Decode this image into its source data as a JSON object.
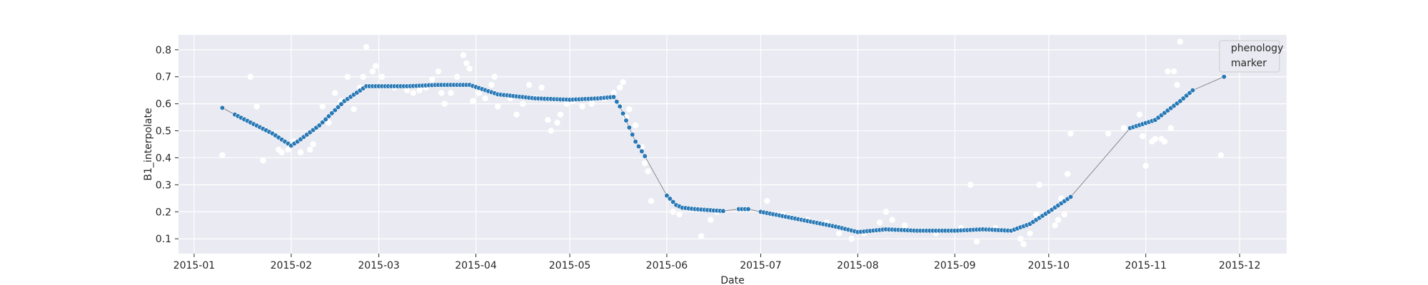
{
  "chart_data": {
    "type": "scatter",
    "title": "",
    "xlabel": "Date",
    "ylabel": "B1_interpolate",
    "x_axis": {
      "type": "date",
      "range": [
        "2014-12-27",
        "2015-12-16"
      ],
      "ticks": [
        "2015-01-01",
        "2015-02-01",
        "2015-03-01",
        "2015-04-01",
        "2015-05-01",
        "2015-06-01",
        "2015-07-01",
        "2015-08-01",
        "2015-09-01",
        "2015-10-01",
        "2015-11-01",
        "2015-12-01"
      ],
      "tick_labels": [
        "2015-01",
        "2015-02",
        "2015-03",
        "2015-04",
        "2015-05",
        "2015-06",
        "2015-07",
        "2015-08",
        "2015-09",
        "2015-10",
        "2015-11",
        "2015-12"
      ]
    },
    "y_axis": {
      "range": [
        0.045,
        0.855
      ],
      "ticks": [
        0.1,
        0.2,
        0.3,
        0.4,
        0.5,
        0.6,
        0.7,
        0.8
      ],
      "tick_labels": [
        "0.1",
        "0.2",
        "0.3",
        "0.4",
        "0.5",
        "0.6",
        "0.7",
        "0.8"
      ]
    },
    "grid": true,
    "background": "#eaeaf2",
    "legend": {
      "placement": "top-right",
      "entries": [
        "phenology",
        "marker"
      ]
    },
    "series": [
      {
        "role": "raw-observations",
        "color": "#ffffff",
        "points": [
          [
            "2015-01-10",
            0.41
          ],
          [
            "2015-01-19",
            0.7
          ],
          [
            "2015-01-21",
            0.59
          ],
          [
            "2015-01-23",
            0.39
          ],
          [
            "2015-01-26",
            0.49
          ],
          [
            "2015-01-28",
            0.43
          ],
          [
            "2015-01-29",
            0.42
          ],
          [
            "2015-01-31",
            0.43
          ],
          [
            "2015-02-02",
            0.46
          ],
          [
            "2015-02-04",
            0.42
          ],
          [
            "2015-02-07",
            0.43
          ],
          [
            "2015-02-08",
            0.45
          ],
          [
            "2015-02-11",
            0.59
          ],
          [
            "2015-02-13",
            0.53
          ],
          [
            "2015-02-15",
            0.64
          ],
          [
            "2015-02-17",
            0.61
          ],
          [
            "2015-02-19",
            0.7
          ],
          [
            "2015-02-21",
            0.58
          ],
          [
            "2015-02-23",
            0.66
          ],
          [
            "2015-02-24",
            0.7
          ],
          [
            "2015-02-25",
            0.81
          ],
          [
            "2015-02-27",
            0.72
          ],
          [
            "2015-02-28",
            0.74
          ],
          [
            "2015-03-02",
            0.7
          ],
          [
            "2015-03-06",
            0.66
          ],
          [
            "2015-03-10",
            0.65
          ],
          [
            "2015-03-12",
            0.64
          ],
          [
            "2015-03-14",
            0.65
          ],
          [
            "2015-03-16",
            0.66
          ],
          [
            "2015-03-18",
            0.69
          ],
          [
            "2015-03-20",
            0.72
          ],
          [
            "2015-03-21",
            0.64
          ],
          [
            "2015-03-22",
            0.6
          ],
          [
            "2015-03-24",
            0.64
          ],
          [
            "2015-03-26",
            0.7
          ],
          [
            "2015-03-28",
            0.78
          ],
          [
            "2015-03-29",
            0.75
          ],
          [
            "2015-03-30",
            0.73
          ],
          [
            "2015-03-31",
            0.61
          ],
          [
            "2015-04-02",
            0.64
          ],
          [
            "2015-04-04",
            0.62
          ],
          [
            "2015-04-06",
            0.67
          ],
          [
            "2015-04-07",
            0.7
          ],
          [
            "2015-04-08",
            0.59
          ],
          [
            "2015-04-12",
            0.62
          ],
          [
            "2015-04-14",
            0.56
          ],
          [
            "2015-04-16",
            0.6
          ],
          [
            "2015-04-18",
            0.67
          ],
          [
            "2015-04-20",
            0.62
          ],
          [
            "2015-04-22",
            0.66
          ],
          [
            "2015-04-24",
            0.54
          ],
          [
            "2015-04-25",
            0.5
          ],
          [
            "2015-04-27",
            0.53
          ],
          [
            "2015-04-28",
            0.56
          ],
          [
            "2015-04-30",
            0.6
          ],
          [
            "2015-05-02",
            0.61
          ],
          [
            "2015-05-05",
            0.59
          ],
          [
            "2015-05-08",
            0.6
          ],
          [
            "2015-05-12",
            0.62
          ],
          [
            "2015-05-15",
            0.64
          ],
          [
            "2015-05-17",
            0.66
          ],
          [
            "2015-05-18",
            0.68
          ],
          [
            "2015-05-19",
            0.55
          ],
          [
            "2015-05-20",
            0.58
          ],
          [
            "2015-05-22",
            0.52
          ],
          [
            "2015-05-24",
            0.44
          ],
          [
            "2015-05-25",
            0.38
          ],
          [
            "2015-05-26",
            0.35
          ],
          [
            "2015-05-27",
            0.24
          ],
          [
            "2015-06-03",
            0.2
          ],
          [
            "2015-06-05",
            0.19
          ],
          [
            "2015-06-12",
            0.11
          ],
          [
            "2015-06-15",
            0.17
          ],
          [
            "2015-06-17",
            0.2
          ],
          [
            "2015-06-26",
            0.21
          ],
          [
            "2015-07-03",
            0.24
          ],
          [
            "2015-07-08",
            0.19
          ],
          [
            "2015-07-16",
            0.17
          ],
          [
            "2015-07-22",
            0.16
          ],
          [
            "2015-07-26",
            0.12
          ],
          [
            "2015-07-30",
            0.1
          ],
          [
            "2015-08-03",
            0.12
          ],
          [
            "2015-08-06",
            0.13
          ],
          [
            "2015-08-08",
            0.16
          ],
          [
            "2015-08-10",
            0.2
          ],
          [
            "2015-08-12",
            0.17
          ],
          [
            "2015-08-16",
            0.15
          ],
          [
            "2015-08-22",
            0.13
          ],
          [
            "2015-08-26",
            0.12
          ],
          [
            "2015-09-03",
            0.14
          ],
          [
            "2015-09-06",
            0.3
          ],
          [
            "2015-09-08",
            0.09
          ],
          [
            "2015-09-14",
            0.14
          ],
          [
            "2015-09-19",
            0.13
          ],
          [
            "2015-09-22",
            0.1
          ],
          [
            "2015-09-23",
            0.08
          ],
          [
            "2015-09-25",
            0.12
          ],
          [
            "2015-09-27",
            0.19
          ],
          [
            "2015-09-28",
            0.3
          ],
          [
            "2015-10-02",
            0.21
          ],
          [
            "2015-10-03",
            0.15
          ],
          [
            "2015-10-04",
            0.17
          ],
          [
            "2015-10-05",
            0.25
          ],
          [
            "2015-10-06",
            0.19
          ],
          [
            "2015-10-07",
            0.34
          ],
          [
            "2015-10-08",
            0.49
          ],
          [
            "2015-10-20",
            0.49
          ],
          [
            "2015-10-25",
            0.51
          ],
          [
            "2015-10-30",
            0.56
          ],
          [
            "2015-10-31",
            0.48
          ],
          [
            "2015-11-01",
            0.37
          ],
          [
            "2015-11-03",
            0.46
          ],
          [
            "2015-11-04",
            0.47
          ],
          [
            "2015-11-06",
            0.47
          ],
          [
            "2015-11-07",
            0.46
          ],
          [
            "2015-11-08",
            0.72
          ],
          [
            "2015-11-09",
            0.51
          ],
          [
            "2015-11-10",
            0.72
          ],
          [
            "2015-11-11",
            0.67
          ],
          [
            "2015-11-12",
            0.83
          ],
          [
            "2015-11-15",
            0.64
          ],
          [
            "2015-11-25",
            0.41
          ]
        ]
      },
      {
        "role": "interpolated-phenology",
        "color": "#2878b5",
        "line_color": "#808080",
        "anchor_points": [
          [
            "2015-01-10",
            0.585
          ],
          [
            "2015-01-14",
            0.56
          ],
          [
            "2015-01-20",
            0.525
          ],
          [
            "2015-01-26",
            0.49
          ],
          [
            "2015-02-01",
            0.445
          ],
          [
            "2015-02-03",
            0.46
          ],
          [
            "2015-02-10",
            0.52
          ],
          [
            "2015-02-18",
            0.61
          ],
          [
            "2015-02-25",
            0.665
          ],
          [
            "2015-03-10",
            0.665
          ],
          [
            "2015-03-20",
            0.67
          ],
          [
            "2015-03-30",
            0.67
          ],
          [
            "2015-04-08",
            0.635
          ],
          [
            "2015-04-20",
            0.62
          ],
          [
            "2015-05-01",
            0.615
          ],
          [
            "2015-05-10",
            0.62
          ],
          [
            "2015-05-15",
            0.625
          ],
          [
            "2015-05-17",
            0.59
          ],
          [
            "2015-05-22",
            0.46
          ],
          [
            "2015-05-27",
            0.37
          ],
          [
            "2015-06-01",
            0.26
          ],
          [
            "2015-06-04",
            0.225
          ],
          [
            "2015-06-06",
            0.215
          ],
          [
            "2015-06-10",
            0.21
          ],
          [
            "2015-06-16",
            0.205
          ],
          [
            "2015-06-19",
            0.203
          ],
          [
            "2015-06-23",
            0.21
          ],
          [
            "2015-06-27",
            0.21
          ],
          [
            "2015-07-01",
            0.2
          ],
          [
            "2015-07-12",
            0.175
          ],
          [
            "2015-07-25",
            0.145
          ],
          [
            "2015-08-01",
            0.125
          ],
          [
            "2015-08-10",
            0.135
          ],
          [
            "2015-08-20",
            0.13
          ],
          [
            "2015-09-01",
            0.13
          ],
          [
            "2015-09-10",
            0.135
          ],
          [
            "2015-09-19",
            0.13
          ],
          [
            "2015-09-25",
            0.155
          ],
          [
            "2015-10-01",
            0.2
          ],
          [
            "2015-10-08",
            0.255
          ],
          [
            "2015-10-18",
            0.4
          ],
          [
            "2015-10-27",
            0.51
          ],
          [
            "2015-11-04",
            0.54
          ],
          [
            "2015-11-12",
            0.61
          ],
          [
            "2015-11-16",
            0.65
          ],
          [
            "2015-11-26",
            0.7
          ]
        ],
        "gaps": [
          [
            "2015-01-10",
            "2015-01-14"
          ],
          [
            "2015-05-25",
            "2015-06-01"
          ],
          [
            "2015-06-19",
            "2015-06-24"
          ],
          [
            "2015-06-27",
            "2015-07-01"
          ],
          [
            "2015-10-08",
            "2015-10-27"
          ],
          [
            "2015-11-16",
            "2015-11-26"
          ]
        ]
      }
    ]
  }
}
